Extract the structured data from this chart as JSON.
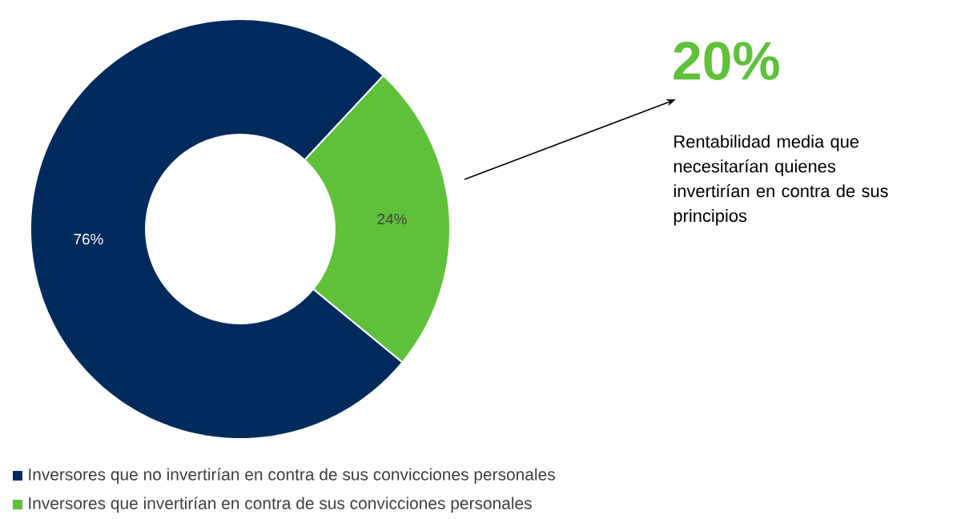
{
  "chart_data": {
    "type": "donut",
    "categories": [
      "Inversores que no invertirían en contra de sus convicciones personales",
      "Inversores que invertirían en contra de sus convicciones personales"
    ],
    "values": [
      76,
      24
    ],
    "colors": [
      "#002b5c",
      "#5fc13a"
    ],
    "value_labels": [
      "76%",
      "24%"
    ],
    "legend": "bottom",
    "annotations": [
      "20%",
      "Rentabilidad media que necesitarían quienes invertirían en contra de sus principios"
    ]
  }
}
